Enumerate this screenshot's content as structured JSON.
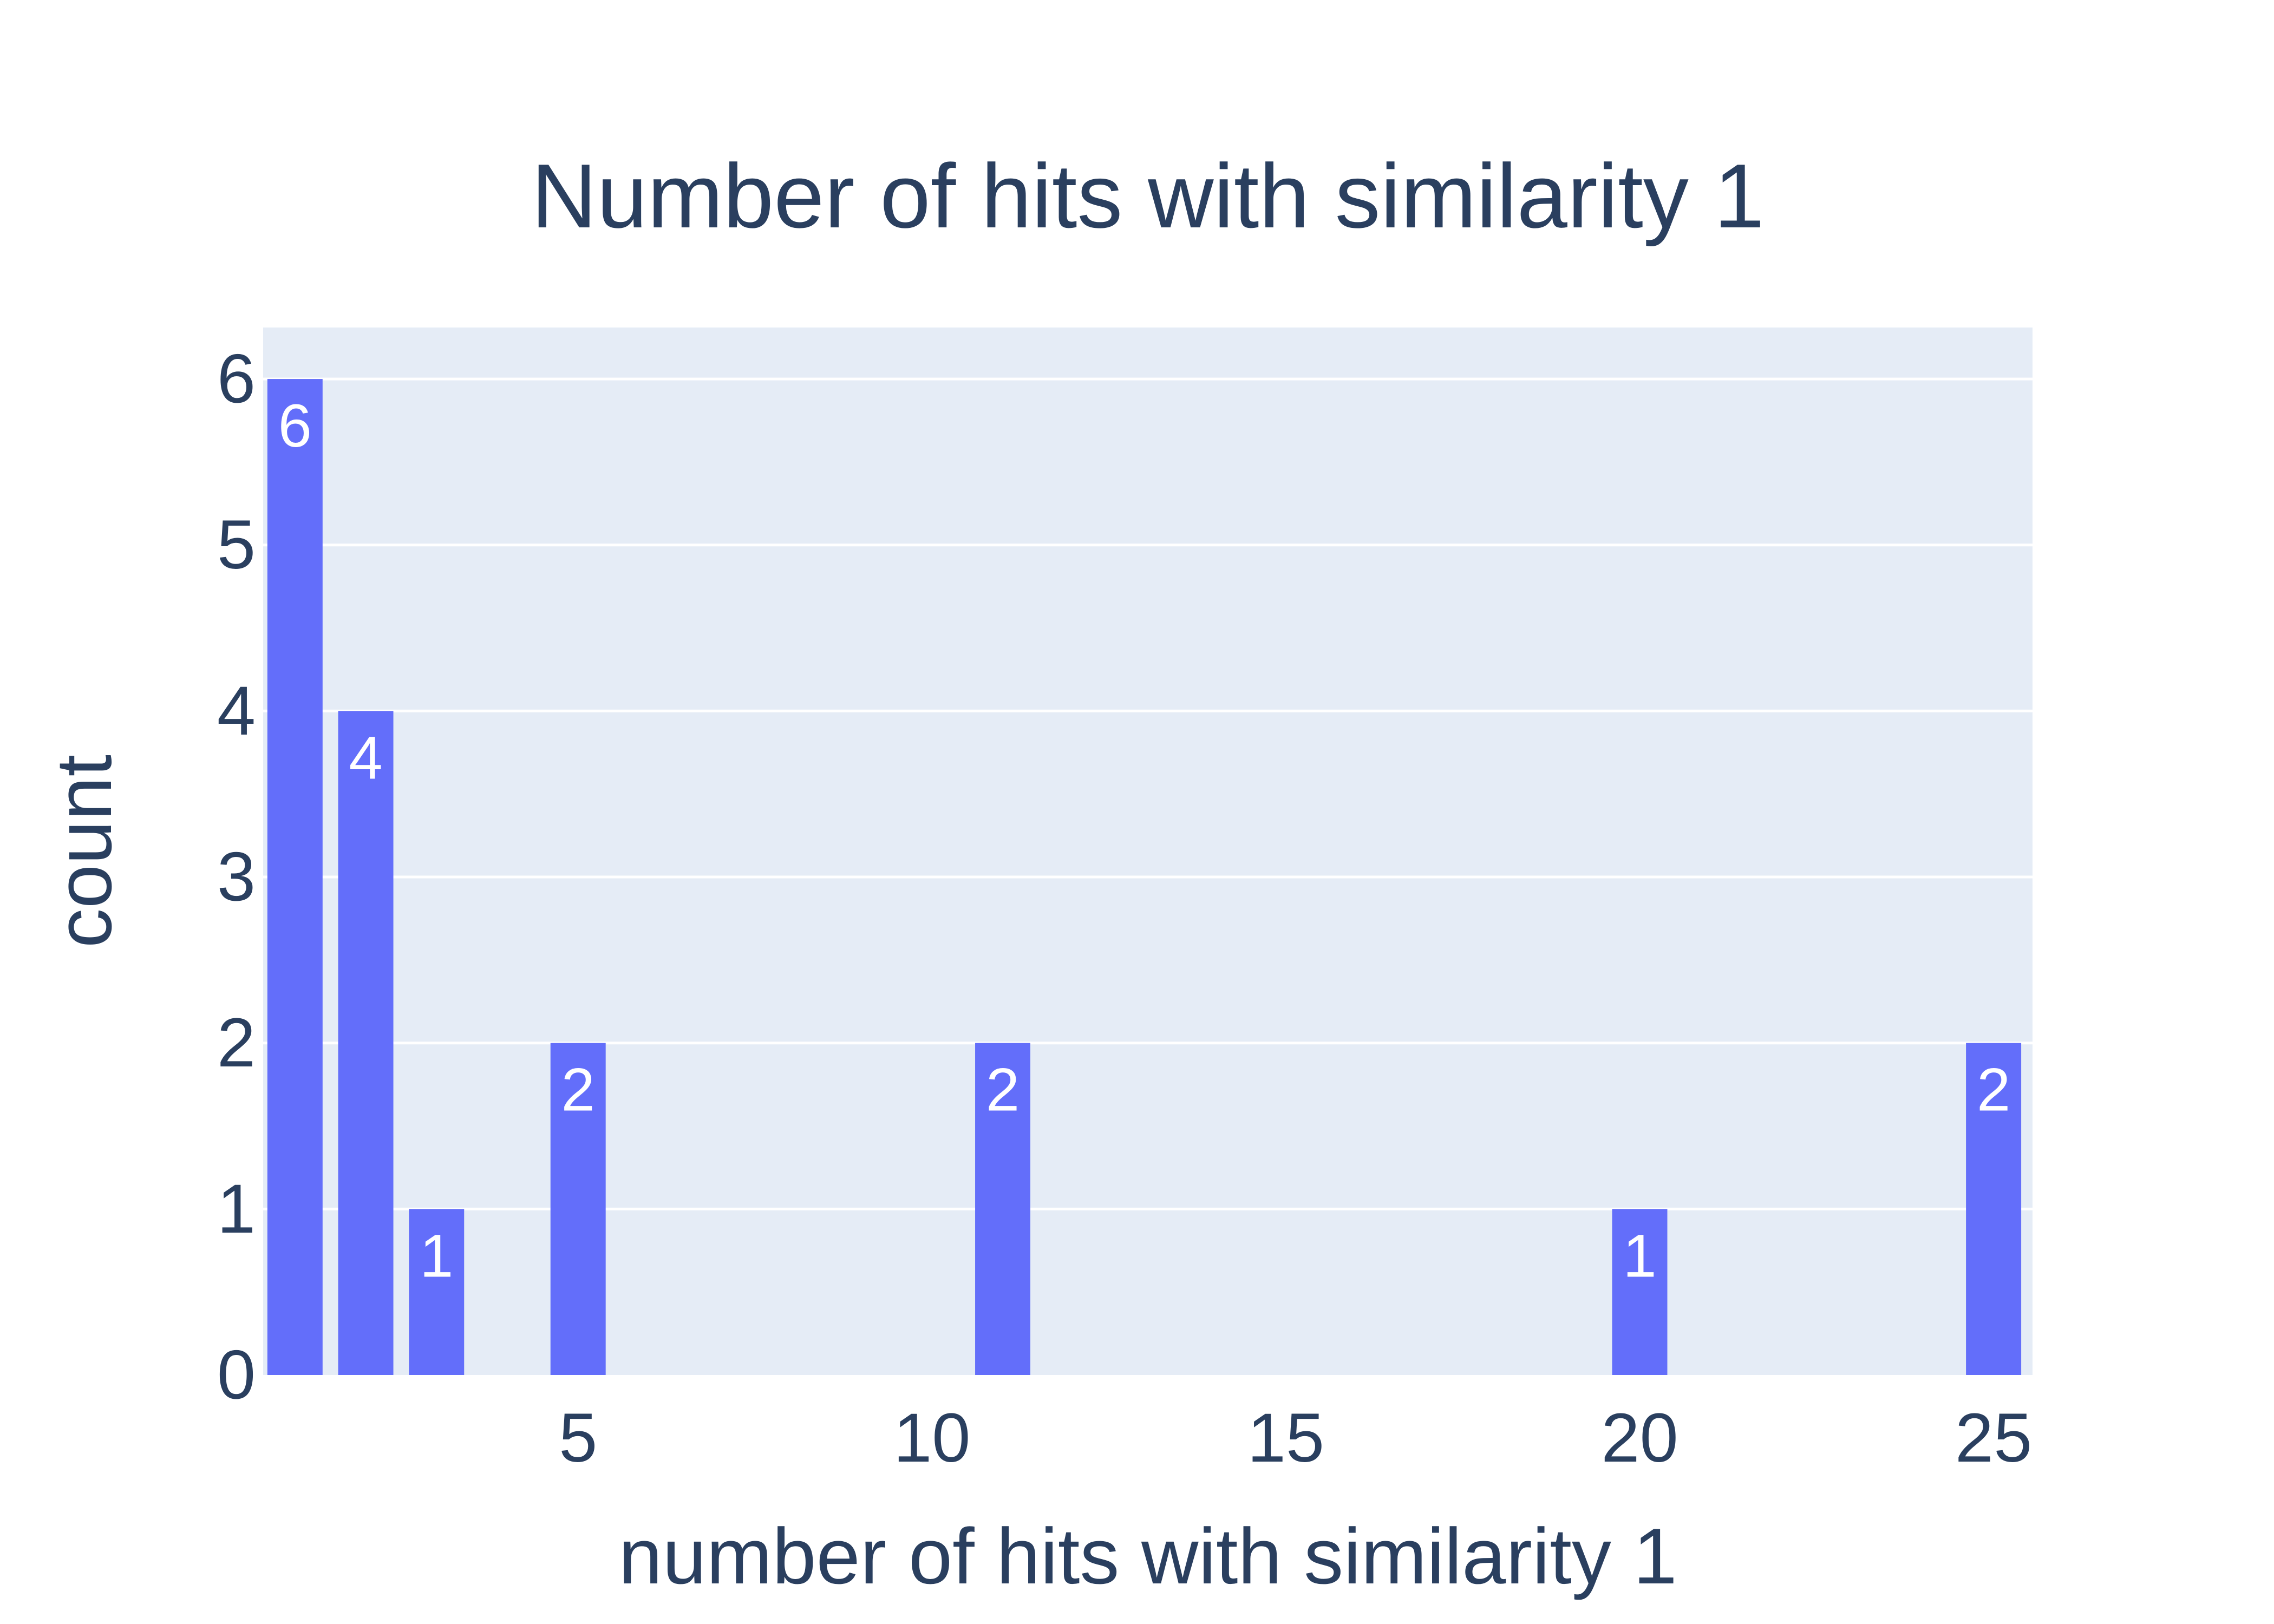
{
  "chart_data": {
    "type": "bar",
    "title": "Number of hits with similarity 1",
    "xlabel": "number of hits with similarity 1",
    "ylabel": "count",
    "x": [
      1,
      2,
      3,
      5,
      11,
      20,
      25
    ],
    "values": [
      6,
      4,
      1,
      2,
      2,
      1,
      2
    ],
    "data_labels": [
      "6",
      "4",
      "1",
      "2",
      "2",
      "1",
      "2"
    ],
    "xlim": [
      0.55,
      25.55
    ],
    "ylim": [
      0,
      6.31
    ],
    "xticks": [
      5,
      10,
      15,
      20,
      25
    ],
    "xtick_labels": [
      "5",
      "10",
      "15",
      "20",
      "25"
    ],
    "yticks": [
      0,
      1,
      2,
      3,
      4,
      5,
      6
    ],
    "ytick_labels": [
      "0",
      "1",
      "2",
      "3",
      "4",
      "5",
      "6"
    ],
    "grid": "y",
    "colors": {
      "bar": "#636efa",
      "plot_bg": "#e5ecf6",
      "grid": "#ffffff",
      "text": "#2a3f5f",
      "bar_label": "#ffffff"
    }
  }
}
